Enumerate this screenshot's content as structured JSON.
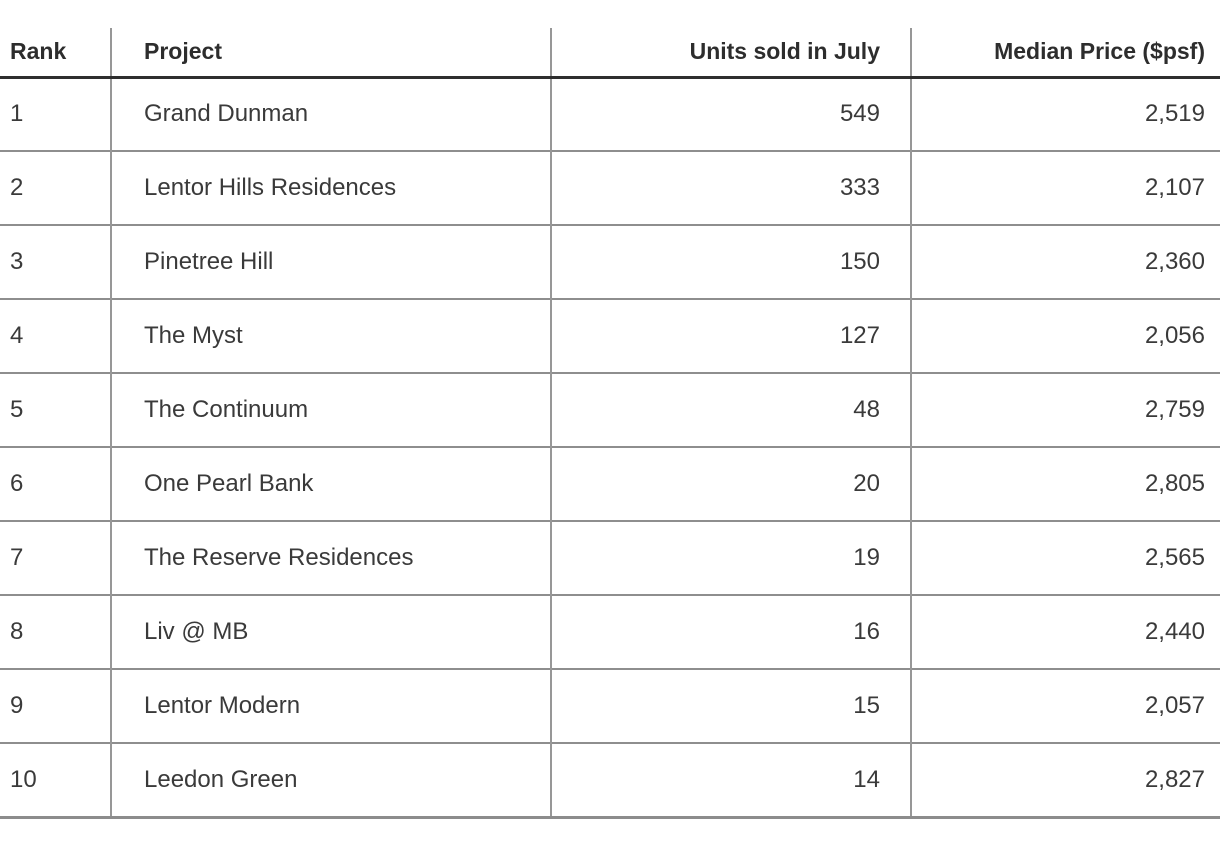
{
  "chart_data": {
    "type": "table",
    "columns": [
      "Rank",
      "Project",
      "Units sold in July",
      "Median Price ($psf)"
    ],
    "rows": [
      [
        1,
        "Grand Dunman",
        549,
        2519
      ],
      [
        2,
        "Lentor Hills Residences",
        333,
        2107
      ],
      [
        3,
        "Pinetree Hill",
        150,
        2360
      ],
      [
        4,
        "The Myst",
        127,
        2056
      ],
      [
        5,
        "The Continuum",
        48,
        2759
      ],
      [
        6,
        "One Pearl Bank",
        20,
        2805
      ],
      [
        7,
        "The Reserve Residences",
        19,
        2565
      ],
      [
        8,
        "Liv @ MB",
        16,
        2440
      ],
      [
        9,
        "Lentor Modern",
        15,
        2057
      ],
      [
        10,
        "Leedon Green",
        14,
        2827
      ]
    ],
    "layout": {
      "header_bold": true,
      "numeric_columns_right_aligned": true,
      "grid": "horizontal rules + vertical column dividers, no outer frame"
    }
  },
  "table": {
    "headers": {
      "rank": "Rank",
      "project": "Project",
      "units": "Units sold in July",
      "price": "Median Price ($psf)"
    },
    "rows": [
      {
        "rank": "1",
        "project": "Grand Dunman",
        "units": "549",
        "price": "2,519"
      },
      {
        "rank": "2",
        "project": "Lentor Hills Residences",
        "units": "333",
        "price": "2,107"
      },
      {
        "rank": "3",
        "project": "Pinetree Hill",
        "units": "150",
        "price": "2,360"
      },
      {
        "rank": "4",
        "project": "The Myst",
        "units": "127",
        "price": "2,056"
      },
      {
        "rank": "5",
        "project": "The Continuum",
        "units": "48",
        "price": "2,759"
      },
      {
        "rank": "6",
        "project": "One Pearl Bank",
        "units": "20",
        "price": "2,805"
      },
      {
        "rank": "7",
        "project": "The Reserve Residences",
        "units": "19",
        "price": "2,565"
      },
      {
        "rank": "8",
        "project": "Liv @ MB",
        "units": "16",
        "price": "2,440"
      },
      {
        "rank": "9",
        "project": "Lentor Modern",
        "units": "15",
        "price": "2,057"
      },
      {
        "rank": "10",
        "project": "Leedon Green",
        "units": "14",
        "price": "2,827"
      }
    ]
  },
  "colors": {
    "header_text": "#2d2d2d",
    "body_text": "#3a3a3a",
    "header_rule": "#2e2e2e",
    "row_rule": "#8e8e8e",
    "column_divider": "#979797",
    "background": "#ffffff"
  }
}
